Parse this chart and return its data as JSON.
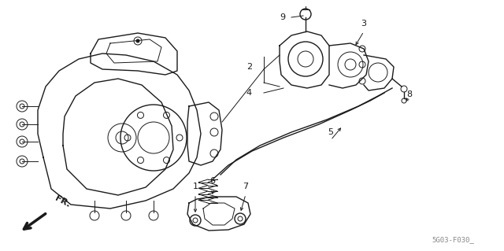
{
  "bg_color": "#ffffff",
  "line_color": "#1a1a1a",
  "gray_color": "#888888",
  "fig_width": 6.4,
  "fig_height": 3.19,
  "dpi": 100,
  "part_code": "5G03-F030_",
  "fr_label": "FR."
}
